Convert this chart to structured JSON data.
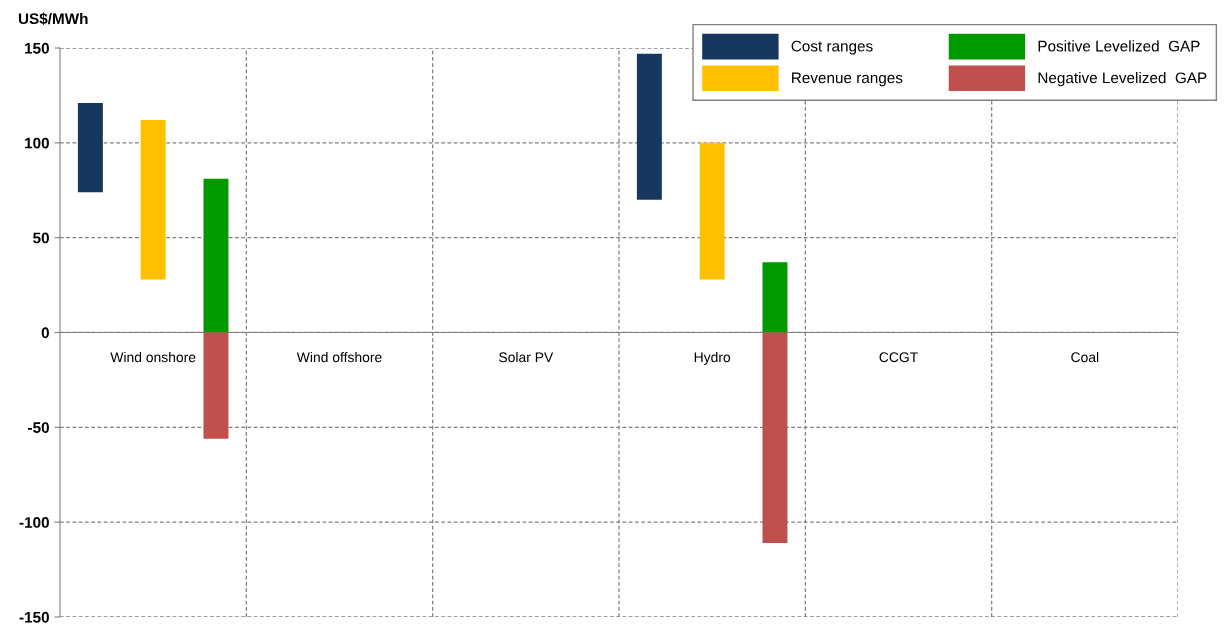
{
  "chart_data": {
    "type": "bar",
    "ylabel": "US$/MWh",
    "categories": [
      "Wind onshore",
      "Wind offshore",
      "Solar PV",
      "Hydro",
      "CCGT",
      "Coal"
    ],
    "series": [
      {
        "name": "Cost ranges",
        "color": "#17375e",
        "values": [
          47,
          null,
          null,
          77,
          null,
          null
        ],
        "base": [
          74,
          null,
          null,
          70,
          null,
          null
        ]
      },
      {
        "name": "Revenue ranges",
        "color": "#ffc000",
        "values": [
          84,
          null,
          null,
          72,
          null,
          null
        ],
        "base": [
          28,
          null,
          null,
          28,
          null,
          null
        ]
      },
      {
        "name": "Positive Levelized  GAP",
        "color": "#009900",
        "values": [
          81,
          null,
          null,
          37,
          null,
          null
        ]
      },
      {
        "name": "Negative Levelized  GAP",
        "color": "#c0504d",
        "values": [
          -56,
          null,
          null,
          -111,
          null,
          null
        ]
      }
    ],
    "ylim": [
      -150,
      150
    ],
    "yticks": [
      -150,
      -100,
      -50,
      0,
      50,
      100,
      150
    ],
    "grid": true,
    "legend": "top right"
  }
}
